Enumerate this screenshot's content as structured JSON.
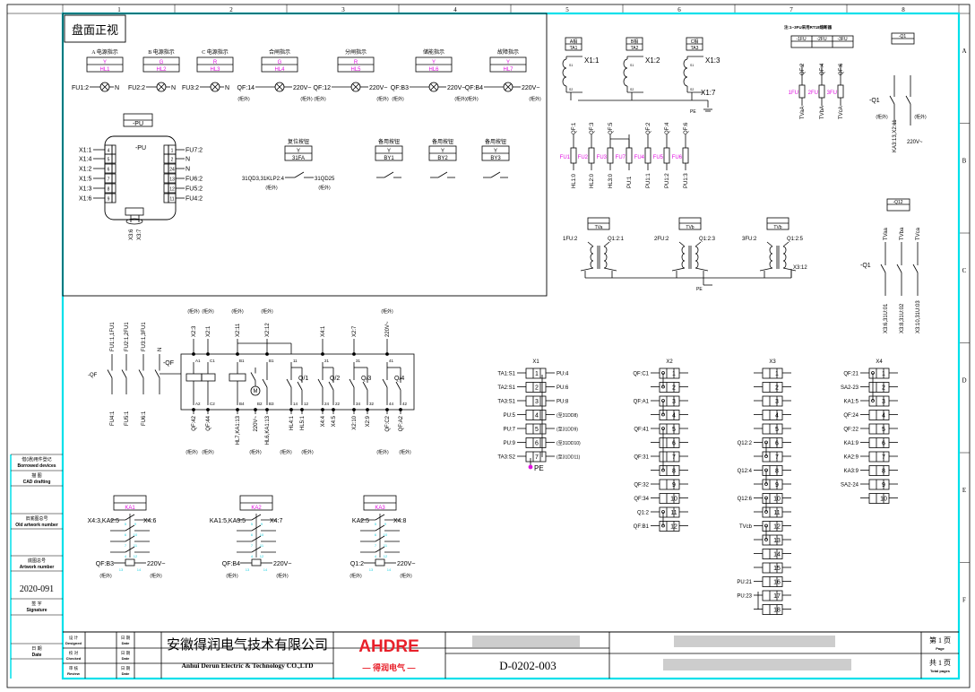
{
  "colors": {
    "frame": "#00e0ea",
    "label": "#e010e0",
    "pin": "#20d0e0",
    "logo": "#e8202a",
    "line": "#000000"
  },
  "frame": {
    "columns": [
      "1",
      "2",
      "3",
      "4",
      "5",
      "6",
      "7",
      "8"
    ],
    "rows": [
      "A",
      "B",
      "C",
      "D",
      "E",
      "F"
    ]
  },
  "panel_title": "盘面正视",
  "indicators": [
    {
      "title": "A 电源指示",
      "color": "Y",
      "id": "HL1",
      "left": "FU1:2",
      "right": "N",
      "left_note": "",
      "right_note": ""
    },
    {
      "title": "B 电源指示",
      "color": "G",
      "id": "HL2",
      "left": "FU2:2",
      "right": "N",
      "left_note": "",
      "right_note": ""
    },
    {
      "title": "C 电源指示",
      "color": "R",
      "id": "HL3",
      "left": "FU3:2",
      "right": "N",
      "left_note": "",
      "right_note": ""
    },
    {
      "title": "合闸指示",
      "color": "G",
      "id": "HL4",
      "left": "QF:14",
      "right": "220V~",
      "left_note": "(柜外)",
      "right_note": "(柜外)"
    },
    {
      "title": "分闸指示",
      "color": "R",
      "id": "HL5",
      "left": "QF:12",
      "right": "220V~",
      "left_note": "(柜外)",
      "right_note": "(柜外)"
    },
    {
      "title": "储能指示",
      "color": "Y",
      "id": "HL6",
      "left": "QF:B3",
      "right": "220V~",
      "left_note": "(柜外)",
      "right_note": "(柜外)"
    },
    {
      "title": "故障指示",
      "color": "Y",
      "id": "HL7",
      "left": "QF:B4",
      "right": "220V~",
      "left_note": "(柜外)",
      "right_note": "(柜外)"
    }
  ],
  "pu": {
    "tag": "-PU",
    "title": "-PU",
    "left_pins": [
      {
        "label": "X1:1",
        "pin": "4"
      },
      {
        "label": "X1:4",
        "pin": "5"
      },
      {
        "label": "X1:2",
        "pin": "6"
      },
      {
        "label": "X1:5",
        "pin": "7"
      },
      {
        "label": "X1:3",
        "pin": "8"
      },
      {
        "label": "X1:6",
        "pin": "9"
      }
    ],
    "right_pins": [
      {
        "label": "FU7:2",
        "pin": "1"
      },
      {
        "label": "N",
        "pin": "2"
      },
      {
        "label": "N",
        "pin": "24"
      },
      {
        "label": "FU6:2",
        "pin": "13"
      },
      {
        "label": "FU5:2",
        "pin": "12"
      },
      {
        "label": "FU4:2",
        "pin": "11"
      }
    ],
    "bottom": [
      "X3:6",
      "X3:7"
    ]
  },
  "reset_button": {
    "title": "复位按钮",
    "color": "Y",
    "id": "31FA",
    "left": "31QD3,31KLP2:4",
    "right": "31QD25",
    "left_note": "(柜外)",
    "right_note": "(柜外)"
  },
  "spare_buttons": [
    {
      "title": "备用按钮",
      "color": "Y",
      "id": "BY1"
    },
    {
      "title": "备用按钮",
      "color": "Y",
      "id": "BY2"
    },
    {
      "title": "备用按钮",
      "color": "Y",
      "id": "BY3"
    }
  ],
  "ct": {
    "items": [
      {
        "phase": "A相",
        "id": "TA1",
        "term": "X1:1"
      },
      {
        "phase": "B相",
        "id": "TA2",
        "term": "X1:2"
      },
      {
        "phase": "C相",
        "id": "TA3",
        "term": "X1:3"
      }
    ],
    "s1": "S1",
    "s2": "S2",
    "common": "X1:7",
    "pe": "PE"
  },
  "fuses": [
    {
      "id": "FU1",
      "top": "QF:1",
      "bottom": "HL1:0"
    },
    {
      "id": "FU2",
      "top": "QF:3",
      "bottom": "HL2:0"
    },
    {
      "id": "FU3",
      "top": "QF:5",
      "bottom": "HL3:0"
    },
    {
      "id": "FU7",
      "top": "",
      "bottom": "PU:1"
    },
    {
      "id": "FU4",
      "top": "QF:2",
      "bottom": "PU1:1"
    },
    {
      "id": "FU5",
      "top": "QF:4",
      "bottom": "PU1:2"
    },
    {
      "id": "FU6",
      "top": "QF:6",
      "bottom": "PU1:3"
    }
  ],
  "tv_fuses": {
    "note": "注:1~3FU采用RT18熔断器",
    "tags": [
      "-1FU",
      "-2FU",
      "-3FU"
    ],
    "items": [
      {
        "id": "1FU",
        "top": "QF:2",
        "bottom": "TVaA"
      },
      {
        "id": "2FU",
        "top": "QF:4",
        "bottom": "TVbA"
      },
      {
        "id": "3FU",
        "top": "QF:6",
        "bottom": "TVcA"
      }
    ]
  },
  "q1": {
    "tag": "-Q1",
    "label": "-Q1",
    "left_note": "(柜外)",
    "right_note": "(柜外)",
    "bottom_left": "KA3:13,X2:11",
    "bottom_right": "220V~"
  },
  "vt": {
    "items": [
      {
        "id": "TVa",
        "left": "1FU:2",
        "right": "Q1:2:1"
      },
      {
        "id": "TVb",
        "left": "2FU:2",
        "right": "Q1:2:3"
      },
      {
        "id": "TVb",
        "left": "3FU:2",
        "right": "Q1:2:5"
      }
    ],
    "common": "X3:12",
    "pe": "PE"
  },
  "q12": {
    "tag": "-Q12",
    "label": "-Q1",
    "top": [
      "TVaa",
      "TVba",
      "TVca"
    ],
    "bottom": [
      "X3:6,31U:01",
      "X3:8,31U:02",
      "X3:10,31U:03"
    ]
  },
  "qf": {
    "label": "-QF",
    "left_top": [
      "FU1:1,1FU1",
      "FU2:1,2FU1",
      "FU3:1,3FU1",
      "N"
    ],
    "left_bottom": [
      "FU4:1",
      "FU5:1",
      "FU6:1"
    ],
    "top": [
      "X2:3",
      "X2:1",
      "X2:11",
      "X2:12",
      "X4:1",
      "X2:7",
      "220V~"
    ],
    "top_notes": [
      "(柜外)",
      "(柜外)",
      "(柜外)",
      "(柜外)",
      "(柜外)"
    ],
    "pins_top": [
      "A1",
      "C1",
      "B1",
      "B1",
      "11",
      "21",
      "31",
      "41"
    ],
    "pins_bottom": [
      "A2",
      "C2",
      "B4",
      "B2",
      "B3",
      "14",
      "12",
      "24",
      "22",
      "34",
      "32",
      "44",
      "42"
    ],
    "contacts": [
      "Q/1",
      "Q/2",
      "Q/3",
      "Q/4"
    ],
    "motor": "M",
    "bottom": [
      "QF:42",
      "QF:44",
      "HL7,KA1:13",
      "220V~",
      "HL6,KA1:13",
      "HL4:1",
      "HL5:1",
      "X4:4",
      "X4:5",
      "X2:10",
      "X2:9",
      "QF:C2",
      "QF:A2"
    ],
    "bottom_notes": [
      "(柜外)",
      "(柜外)",
      "(柜外)",
      "(柜外)",
      "(柜外)",
      "(柜外)",
      "(柜外)"
    ]
  },
  "relays": [
    {
      "id": "KA1",
      "left": "X4:3,KA2:5",
      "right": "X4:6",
      "coil_left": "QF:B3",
      "coil_right": "220V~",
      "note_left": "(柜外)",
      "note_right": "(柜外)"
    },
    {
      "id": "KA2",
      "left": "KA1:5,KA3:5",
      "right": "X4:7",
      "coil_left": "QF:B4",
      "coil_right": "220V~",
      "note_left": "(柜外)",
      "note_right": "(柜外)"
    },
    {
      "id": "KA3",
      "left": "KA2:5",
      "right": "X4:8",
      "coil_left": "Q1:2",
      "coil_right": "220V~",
      "note_left": "(柜外)",
      "note_right": "(柜外)"
    }
  ],
  "relay_pins": {
    "left": [
      "5",
      "6",
      "7",
      "4"
    ],
    "right": [
      "9",
      "10",
      "11",
      "12"
    ],
    "coil": [
      "13",
      "14"
    ]
  },
  "terminals": {
    "X1": {
      "title": "X1",
      "left": [
        "TA1:S1",
        "TA2:S1",
        "TA3:S1",
        "PU:5",
        "PU:7",
        "PU:9",
        "TA3:S2"
      ],
      "right": [
        "PU:4",
        "PU:6",
        "PU:8",
        "(至31DD8)",
        "(至31DD9)",
        "(至31DD10)",
        "(至31DD11)"
      ],
      "pe": "PE"
    },
    "X2": {
      "title": "X2",
      "left": [
        "QF:C1",
        "",
        "QF:A1",
        "",
        "QF:41",
        "",
        "QF:31",
        "",
        "QF:32",
        "QF:34",
        "Q1:2",
        "QF:B1"
      ]
    },
    "X3": {
      "title": "X3",
      "left": [
        "",
        "",
        "",
        "",
        "",
        "Q12:2",
        "",
        "Q12:4",
        "",
        "Q12:6",
        "",
        "TVcb",
        "",
        "",
        "",
        "PU:21",
        "PU:23",
        ""
      ]
    },
    "X4": {
      "title": "X4",
      "left": [
        "QF:21",
        "SA2-23",
        "KA1:5",
        "QF:24",
        "QF:22",
        "KA1:9",
        "KA2:9",
        "KA3:9",
        "SA2-24",
        ""
      ]
    }
  },
  "left_strip": {
    "borrowed_cn": "借(通)用件登记",
    "borrowed_en": "Borrowed devices",
    "cad_cn": "描 图",
    "cad_en": "CAD drafting",
    "old_cn": "旧底图总号",
    "old_en": "Old artwork number",
    "art_cn": "底图总号",
    "art_en": "Artwork number",
    "art_value": "2020-091",
    "sign_cn": "签 字",
    "sign_en": "Signature",
    "date_cn": "日 期",
    "date_en": "Date"
  },
  "title_block": {
    "designed_cn": "设 计",
    "designed_en": "Designed",
    "checked_cn": "校 对",
    "checked_en": "Checked",
    "review_cn": "审 核",
    "review_en": "Review",
    "date_cn": "日 期",
    "date_en": "Date",
    "company_cn": "安徽得润电气技术有限公司",
    "company_en": "Anhui Derun Electric & Technology CO.,LTD",
    "logo_text": "AHDRE",
    "logo_sub": "— 得润电气 —",
    "drawing_no": "D-0202-003",
    "page_cn": "第 1 页",
    "page_en": "Page",
    "total_cn": "共 1 页",
    "total_en": "Total pages"
  }
}
